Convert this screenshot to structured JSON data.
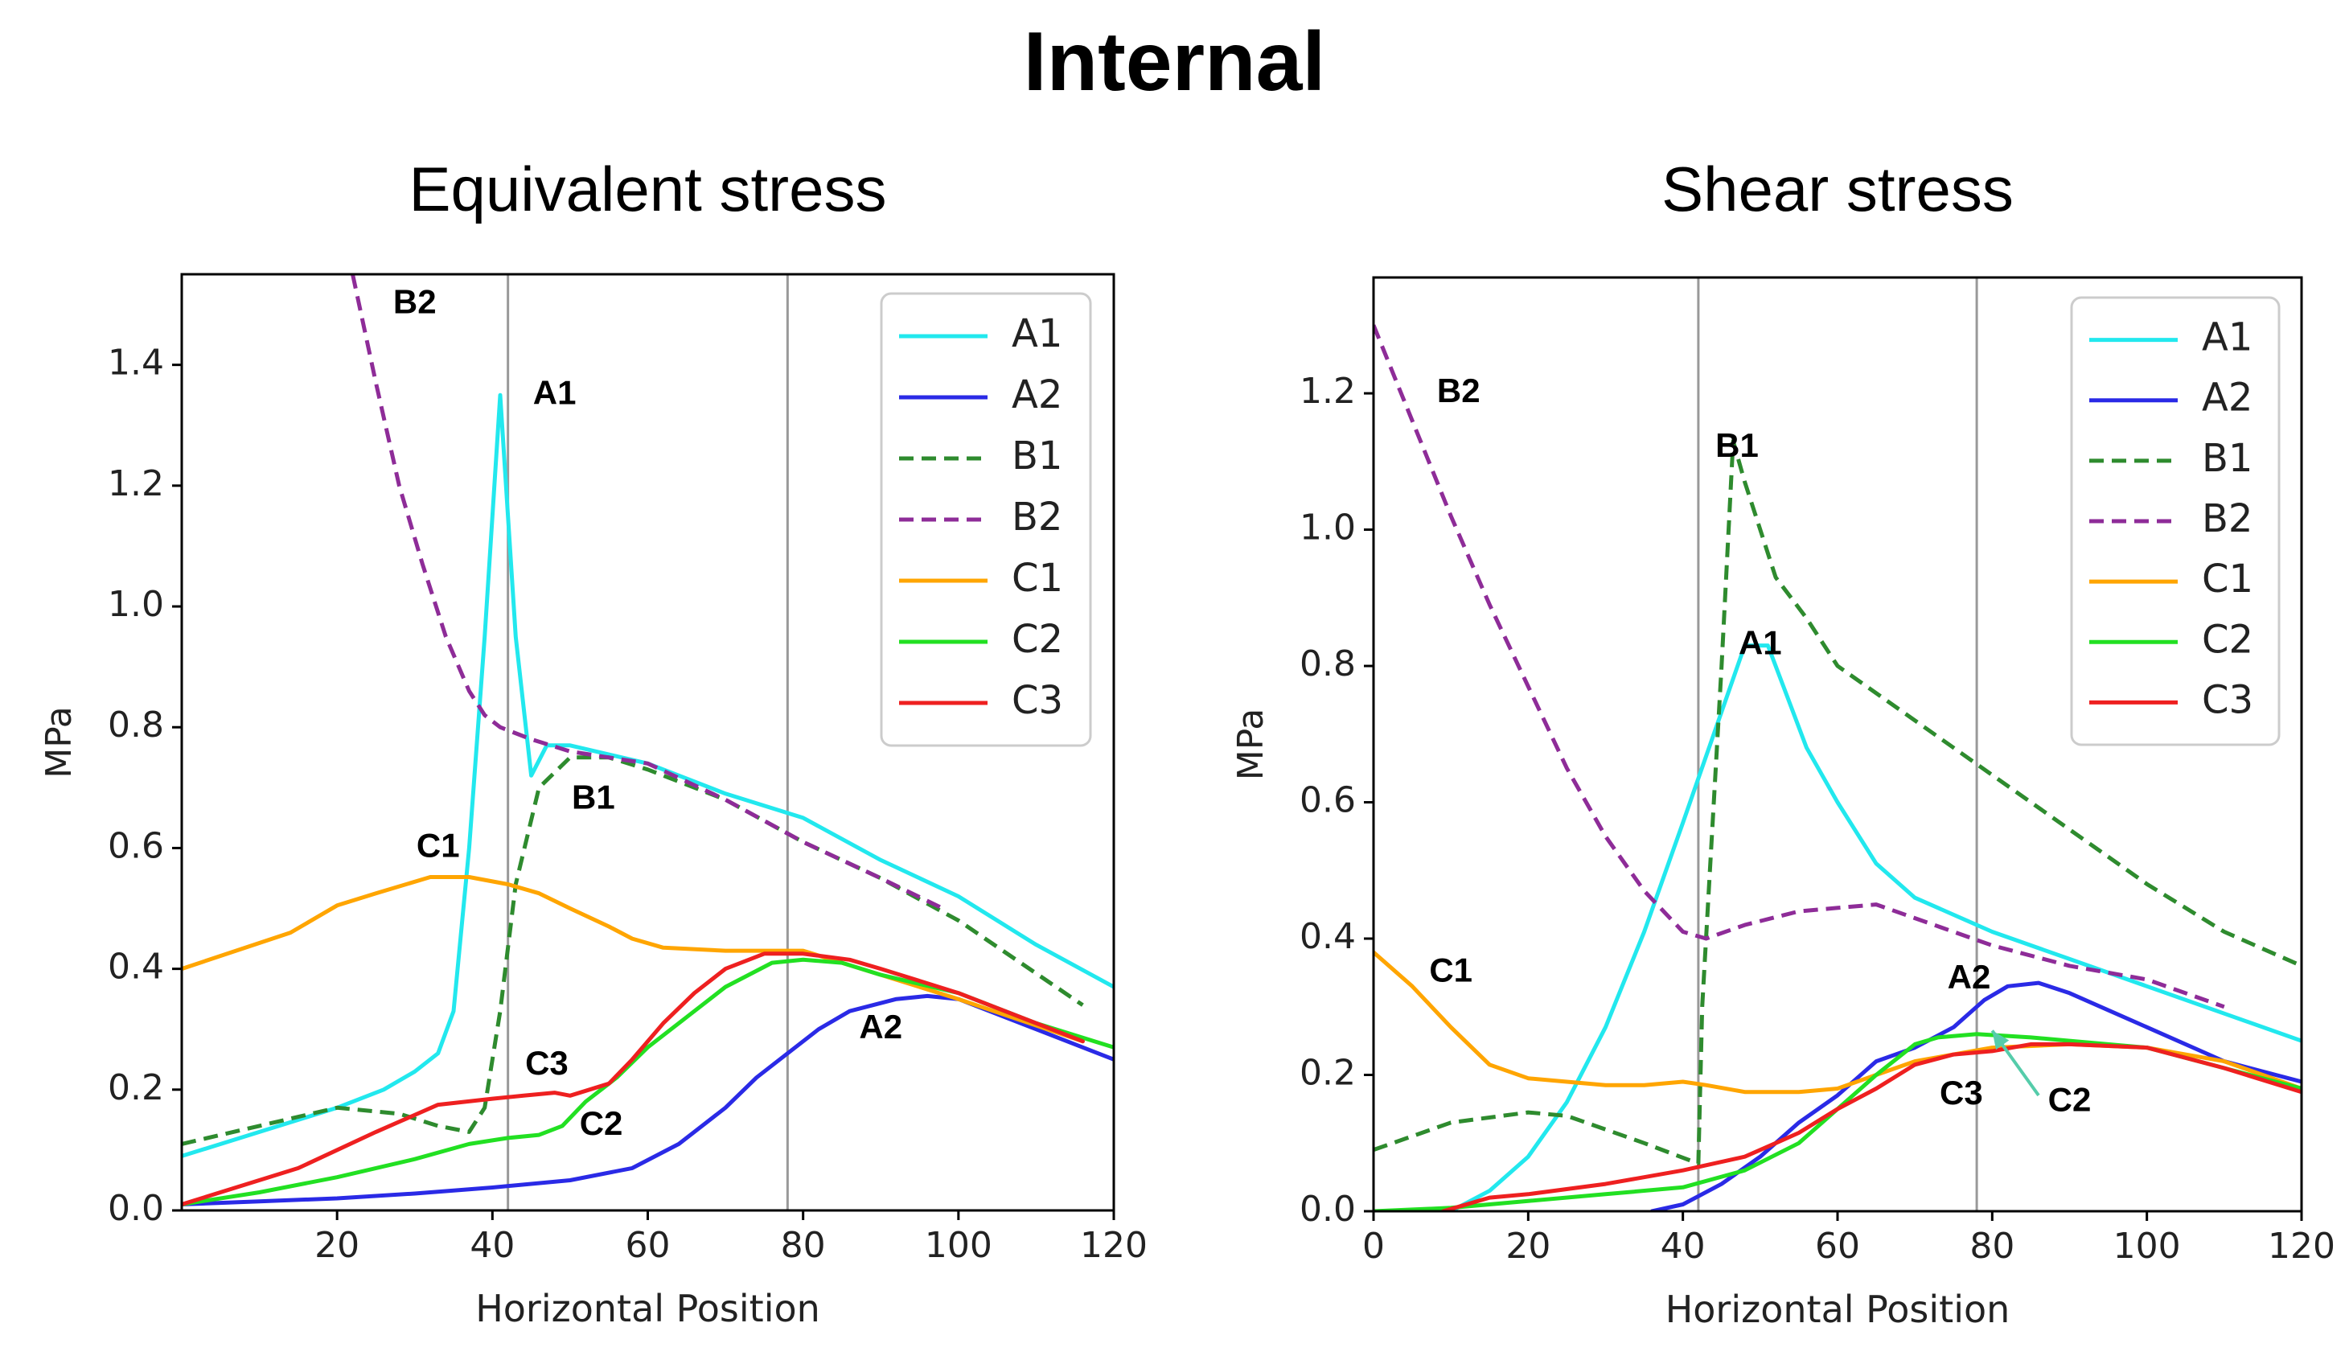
{
  "suptitle": "Internal",
  "colors": {
    "A1": "#22e8ee",
    "A2": "#2a2ae6",
    "B1": "#2e8b2e",
    "B2": "#8e2c98",
    "C1": "#ffa500",
    "C2": "#22e022",
    "C3": "#ee2020",
    "vline": "#999999",
    "arrow": "#55ccaa"
  },
  "legend_entries": [
    {
      "name": "A1",
      "style": "solid"
    },
    {
      "name": "A2",
      "style": "solid"
    },
    {
      "name": "B1",
      "style": "dashed"
    },
    {
      "name": "B2",
      "style": "dashed"
    },
    {
      "name": "C1",
      "style": "solid"
    },
    {
      "name": "C2",
      "style": "solid"
    },
    {
      "name": "C3",
      "style": "solid"
    }
  ],
  "chart_data": [
    {
      "type": "line",
      "title": "Equivalent stress",
      "xlabel": "Horizontal Position",
      "ylabel": "MPa",
      "xlim": [
        0,
        120
      ],
      "ylim": [
        0,
        1.55
      ],
      "xticks": [
        20,
        40,
        60,
        80,
        100,
        120
      ],
      "xtick_labels": [
        "20",
        "40",
        "60",
        "80",
        "100",
        "120"
      ],
      "yticks": [
        0,
        0.2,
        0.4,
        0.6,
        0.8,
        1.0,
        1.2,
        1.4
      ],
      "ytick_labels": [
        "0.0",
        "0.2",
        "0.4",
        "0.6",
        "0.8",
        "1.0",
        "1.2",
        "1.4"
      ],
      "vlines": [
        42,
        78
      ],
      "legend_position": "top-right",
      "series": [
        {
          "name": "A1",
          "x": [
            0,
            10,
            20,
            26,
            30,
            33,
            35,
            37,
            39,
            41,
            43,
            45,
            47,
            50,
            60,
            70,
            80,
            90,
            100,
            110,
            120
          ],
          "y": [
            0.09,
            0.13,
            0.17,
            0.2,
            0.23,
            0.26,
            0.33,
            0.6,
            0.95,
            1.35,
            0.95,
            0.72,
            0.77,
            0.77,
            0.74,
            0.69,
            0.65,
            0.58,
            0.52,
            0.44,
            0.37
          ]
        },
        {
          "name": "A2",
          "x": [
            0,
            10,
            20,
            30,
            40,
            50,
            58,
            64,
            70,
            74,
            78,
            82,
            86,
            92,
            96,
            100,
            110,
            120
          ],
          "y": [
            0.01,
            0.015,
            0.02,
            0.028,
            0.038,
            0.05,
            0.07,
            0.11,
            0.17,
            0.22,
            0.26,
            0.3,
            0.33,
            0.35,
            0.355,
            0.35,
            0.3,
            0.25
          ]
        },
        {
          "name": "B1",
          "x": [
            0,
            10,
            20,
            28,
            33,
            37,
            39,
            41,
            43,
            46,
            50,
            55,
            60,
            70,
            80,
            90,
            100,
            116
          ],
          "y": [
            0.11,
            0.14,
            0.17,
            0.16,
            0.14,
            0.13,
            0.17,
            0.33,
            0.54,
            0.7,
            0.75,
            0.75,
            0.73,
            0.68,
            0.61,
            0.55,
            0.48,
            0.34
          ]
        },
        {
          "name": "B2",
          "x": [
            22,
            25,
            28,
            31,
            34,
            37,
            39,
            41,
            45,
            50,
            55,
            60,
            70,
            80,
            90,
            98
          ],
          "y": [
            1.55,
            1.37,
            1.2,
            1.07,
            0.95,
            0.86,
            0.82,
            0.8,
            0.78,
            0.76,
            0.75,
            0.74,
            0.68,
            0.61,
            0.55,
            0.5
          ]
        },
        {
          "name": "C1",
          "x": [
            0,
            14,
            20,
            25,
            32,
            37,
            42,
            46,
            50,
            55,
            58,
            62,
            70,
            80,
            90,
            100,
            116
          ],
          "y": [
            0.4,
            0.46,
            0.505,
            0.525,
            0.552,
            0.552,
            0.54,
            0.525,
            0.5,
            0.47,
            0.45,
            0.435,
            0.43,
            0.43,
            0.39,
            0.35,
            0.28
          ]
        },
        {
          "name": "C2",
          "x": [
            0,
            10,
            20,
            30,
            37,
            42,
            46,
            49,
            52,
            56,
            60,
            65,
            70,
            76,
            80,
            85,
            90,
            100,
            110,
            120
          ],
          "y": [
            0.01,
            0.03,
            0.055,
            0.085,
            0.11,
            0.12,
            0.125,
            0.14,
            0.18,
            0.22,
            0.27,
            0.32,
            0.37,
            0.41,
            0.415,
            0.41,
            0.39,
            0.36,
            0.31,
            0.27
          ]
        },
        {
          "name": "C3",
          "x": [
            0,
            15,
            25,
            33,
            40,
            44,
            48,
            50,
            55,
            58,
            62,
            66,
            70,
            75,
            80,
            86,
            90,
            100,
            116
          ],
          "y": [
            0.01,
            0.07,
            0.13,
            0.175,
            0.185,
            0.19,
            0.195,
            0.19,
            0.21,
            0.25,
            0.31,
            0.36,
            0.4,
            0.425,
            0.425,
            0.415,
            0.4,
            0.36,
            0.28
          ]
        }
      ],
      "annotations": [
        {
          "text": "B2",
          "x": 30,
          "y": 1.5
        },
        {
          "text": "A1",
          "x": 48,
          "y": 1.35
        },
        {
          "text": "B1",
          "x": 53,
          "y": 0.68
        },
        {
          "text": "C1",
          "x": 33,
          "y": 0.6
        },
        {
          "text": "C3",
          "x": 47,
          "y": 0.24
        },
        {
          "text": "C2",
          "x": 54,
          "y": 0.14
        },
        {
          "text": "A2",
          "x": 90,
          "y": 0.3
        }
      ]
    },
    {
      "type": "line",
      "title": "Shear stress",
      "xlabel": "Horizontal Position",
      "ylabel": "MPa",
      "xlim": [
        0,
        120
      ],
      "ylim": [
        0,
        1.37
      ],
      "xticks": [
        0,
        20,
        40,
        60,
        80,
        100,
        120
      ],
      "xtick_labels": [
        "0",
        "20",
        "40",
        "60",
        "80",
        "100",
        "120"
      ],
      "yticks": [
        0,
        0.2,
        0.4,
        0.6,
        0.8,
        1.0,
        1.2
      ],
      "ytick_labels": [
        "0.0",
        "0.2",
        "0.4",
        "0.6",
        "0.8",
        "1.0",
        "1.2"
      ],
      "vlines": [
        42,
        78
      ],
      "legend_position": "top-right",
      "series": [
        {
          "name": "A1",
          "x": [
            10,
            15,
            20,
            25,
            30,
            35,
            40,
            44,
            48,
            51,
            53,
            56,
            60,
            65,
            70,
            80,
            90,
            100,
            110,
            120
          ],
          "y": [
            0.0,
            0.03,
            0.08,
            0.16,
            0.27,
            0.41,
            0.57,
            0.7,
            0.83,
            0.83,
            0.77,
            0.68,
            0.6,
            0.51,
            0.46,
            0.41,
            0.37,
            0.33,
            0.29,
            0.25
          ]
        },
        {
          "name": "A2",
          "x": [
            36,
            40,
            45,
            50,
            55,
            60,
            65,
            70,
            75,
            79,
            82,
            86,
            90,
            100,
            110,
            120
          ],
          "y": [
            0.0,
            0.01,
            0.04,
            0.08,
            0.13,
            0.17,
            0.22,
            0.24,
            0.27,
            0.31,
            0.33,
            0.335,
            0.32,
            0.27,
            0.22,
            0.19
          ]
        },
        {
          "name": "B1",
          "x": [
            0,
            10,
            20,
            25,
            30,
            35,
            42,
            42.5,
            43.5,
            45,
            46.5,
            48,
            52,
            56,
            60,
            70,
            80,
            90,
            100,
            110,
            120
          ],
          "y": [
            0.09,
            0.13,
            0.145,
            0.14,
            0.12,
            0.1,
            0.07,
            0.3,
            0.5,
            0.8,
            1.13,
            1.07,
            0.93,
            0.87,
            0.8,
            0.72,
            0.64,
            0.56,
            0.48,
            0.41,
            0.36
          ]
        },
        {
          "name": "B2",
          "x": [
            0,
            5,
            10,
            15,
            20,
            25,
            30,
            35,
            40,
            43,
            48,
            55,
            65,
            70,
            80,
            90,
            100,
            110
          ],
          "y": [
            1.3,
            1.16,
            1.02,
            0.89,
            0.77,
            0.65,
            0.55,
            0.47,
            0.41,
            0.4,
            0.42,
            0.44,
            0.45,
            0.43,
            0.39,
            0.36,
            0.34,
            0.3
          ]
        },
        {
          "name": "C1",
          "x": [
            0,
            5,
            10,
            15,
            20,
            25,
            30,
            35,
            40,
            43,
            48,
            55,
            60,
            65,
            70,
            80,
            90,
            100,
            110,
            120
          ],
          "y": [
            0.38,
            0.33,
            0.27,
            0.215,
            0.195,
            0.19,
            0.185,
            0.185,
            0.19,
            0.185,
            0.175,
            0.175,
            0.18,
            0.2,
            0.22,
            0.24,
            0.245,
            0.24,
            0.22,
            0.18
          ]
        },
        {
          "name": "C2",
          "x": [
            0,
            10,
            20,
            30,
            40,
            48,
            55,
            60,
            65,
            70,
            73,
            78,
            85,
            90,
            100,
            110,
            120
          ],
          "y": [
            0.0,
            0.005,
            0.015,
            0.025,
            0.035,
            0.06,
            0.1,
            0.15,
            0.2,
            0.245,
            0.255,
            0.26,
            0.255,
            0.25,
            0.24,
            0.21,
            0.18
          ]
        },
        {
          "name": "C3",
          "x": [
            9,
            15,
            20,
            30,
            40,
            48,
            52,
            55,
            60,
            65,
            70,
            75,
            80,
            85,
            90,
            100,
            110,
            120
          ],
          "y": [
            0.0,
            0.02,
            0.025,
            0.04,
            0.06,
            0.08,
            0.1,
            0.115,
            0.15,
            0.18,
            0.215,
            0.23,
            0.235,
            0.245,
            0.245,
            0.24,
            0.21,
            0.175
          ]
        }
      ],
      "annotations": [
        {
          "text": "B2",
          "x": 11,
          "y": 1.2
        },
        {
          "text": "B1",
          "x": 47,
          "y": 1.12
        },
        {
          "text": "A1",
          "x": 50,
          "y": 0.83
        },
        {
          "text": "C1",
          "x": 10,
          "y": 0.35
        },
        {
          "text": "A2",
          "x": 77,
          "y": 0.34
        },
        {
          "text": "C3",
          "x": 76,
          "y": 0.17
        },
        {
          "text": "C2",
          "x": 90,
          "y": 0.16
        }
      ],
      "arrow": {
        "from_x": 86,
        "from_y": 0.17,
        "to_x": 80,
        "to_y": 0.265
      }
    }
  ]
}
